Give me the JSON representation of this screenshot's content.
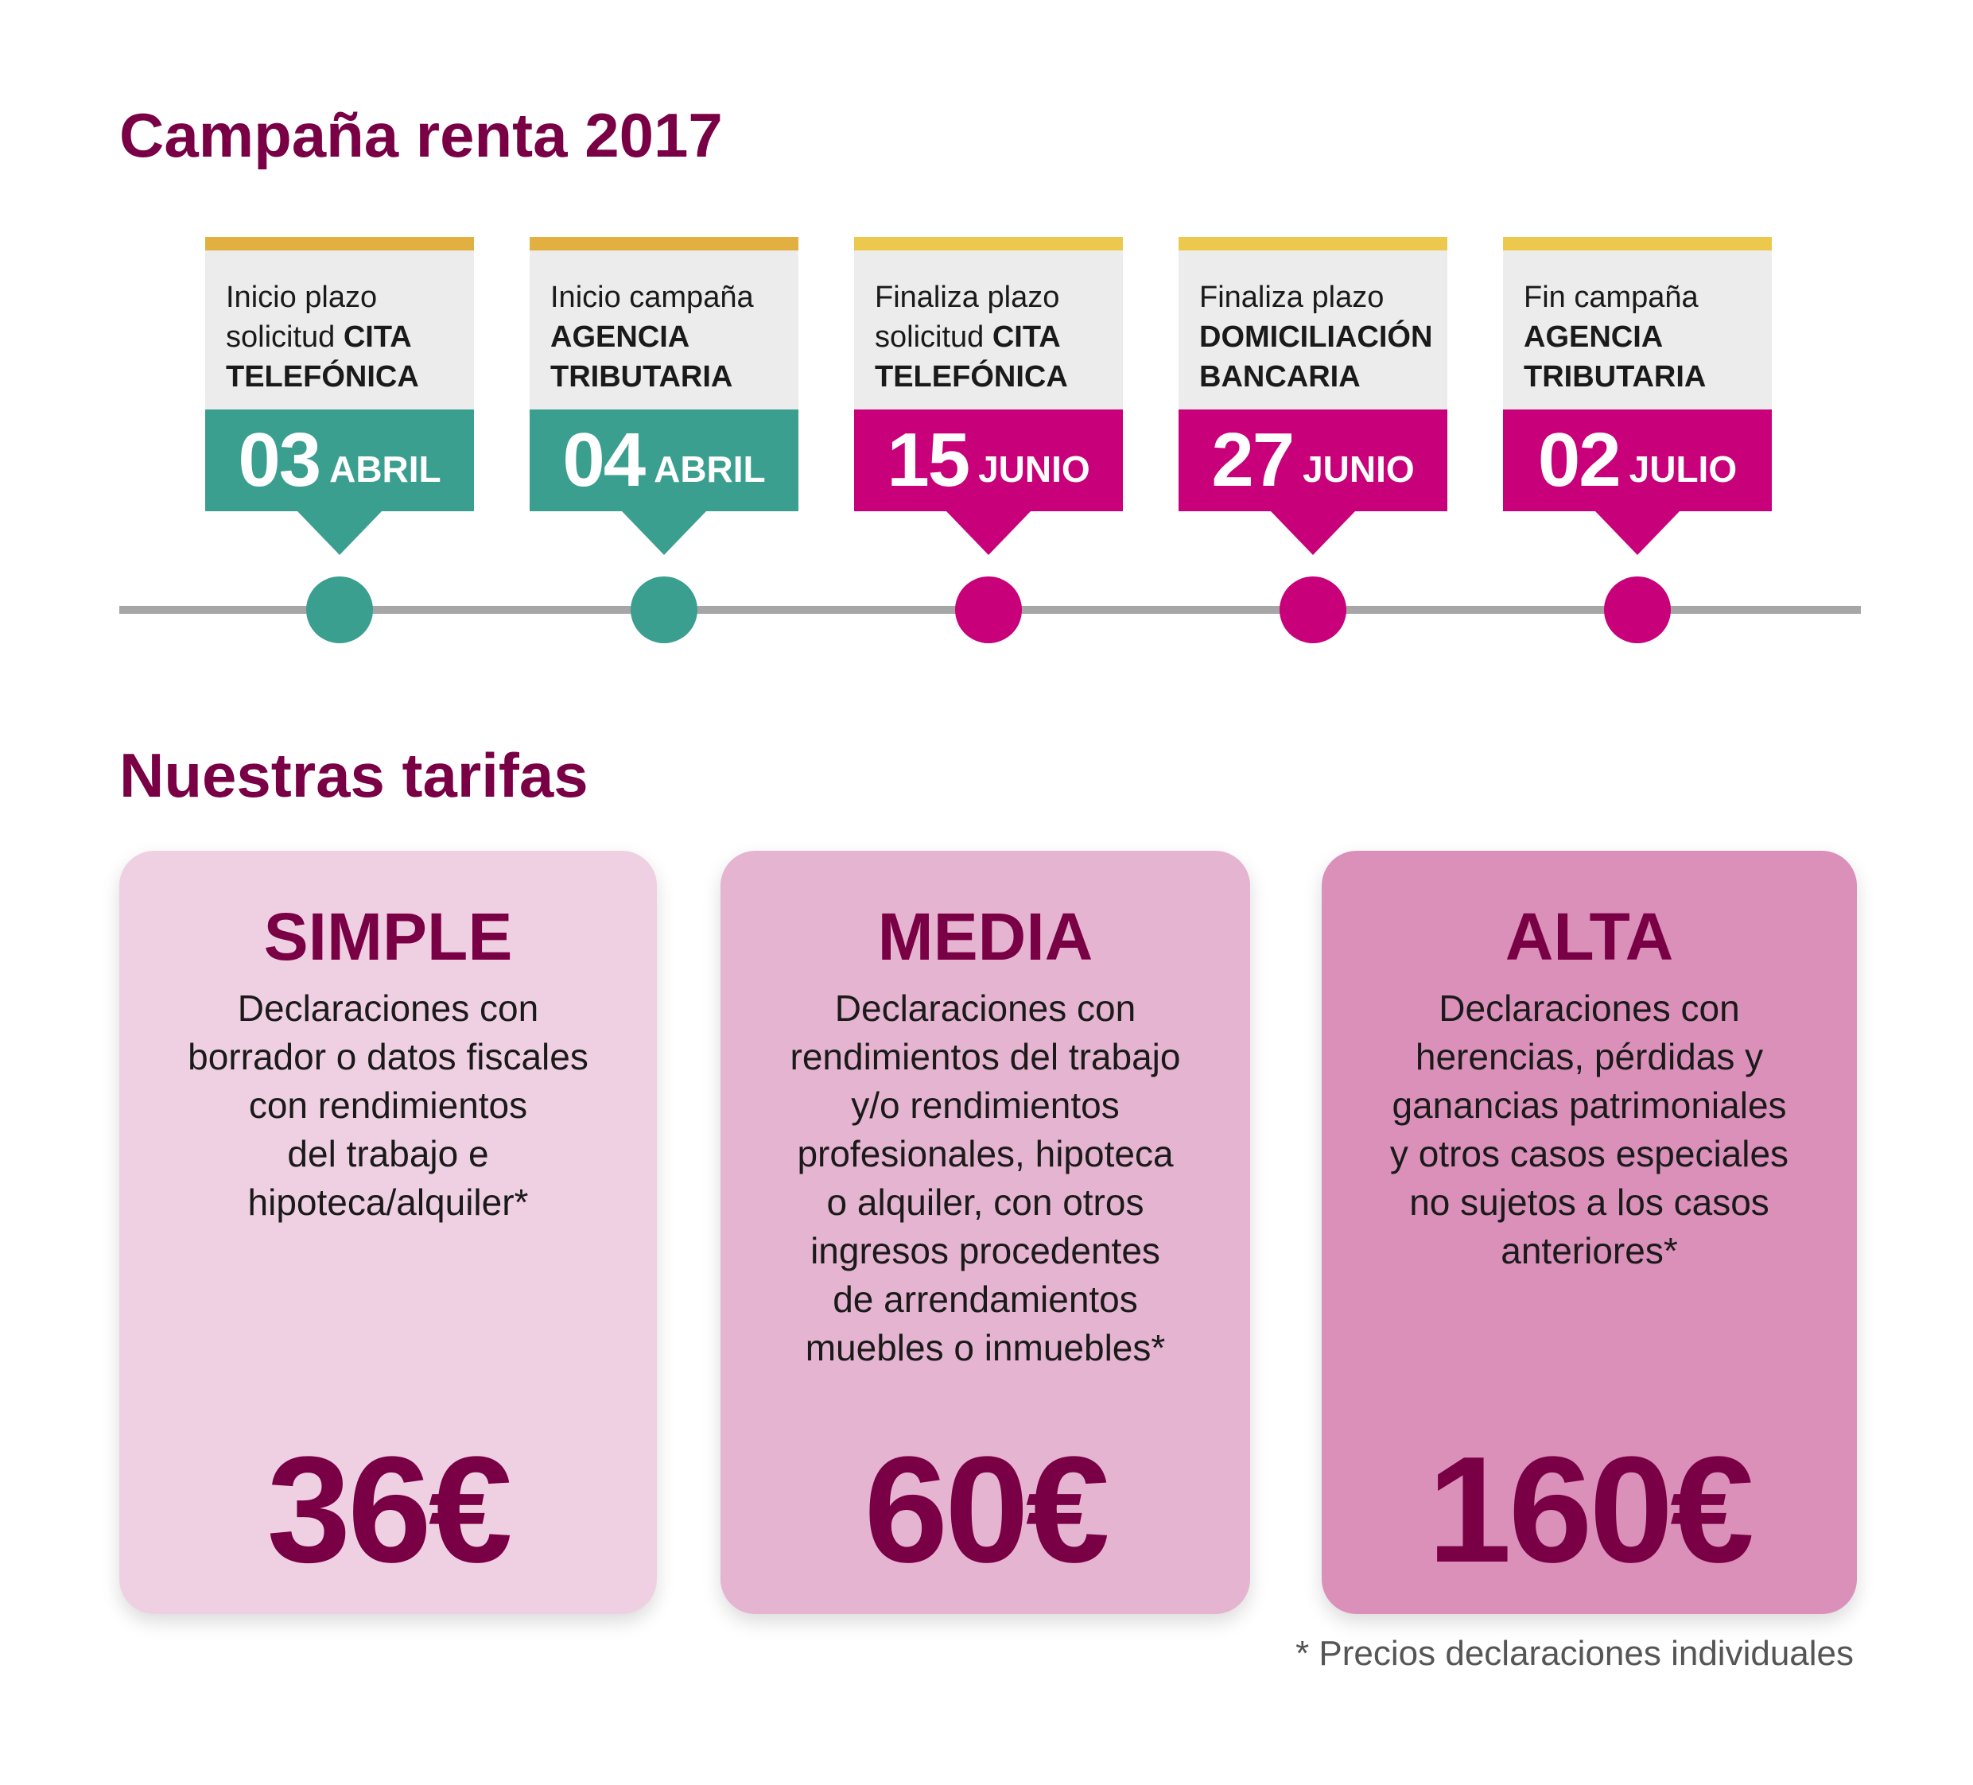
{
  "campaign": {
    "title": "Campaña renta 2017",
    "events": [
      {
        "line1": "Inicio plazo",
        "line2_normal": "solicitud ",
        "line2_bold": "CITA",
        "line3_bold": "TELEFÓNICA",
        "day": "03",
        "month": "ABRIL",
        "color": "#3a9f8e"
      },
      {
        "line1": "Inicio campaña",
        "line2_normal": "",
        "line2_bold": "AGENCIA",
        "line3_bold": "TRIBUTARIA",
        "day": "04",
        "month": "ABRIL",
        "color": "#3a9f8e"
      },
      {
        "line1": "Finaliza plazo",
        "line2_normal": "solicitud ",
        "line2_bold": "CITA",
        "line3_bold": "TELEFÓNICA",
        "day": "15",
        "month": "JUNIO",
        "color": "#c8007a"
      },
      {
        "line1": "Finaliza plazo",
        "line2_normal": "",
        "line2_bold": "DOMICILIACIÓN",
        "line3_bold": "BANCARIA",
        "day": "27",
        "month": "JUNIO",
        "color": "#c8007a"
      },
      {
        "line1": "Fin campaña",
        "line2_normal": "",
        "line2_bold": "AGENCIA",
        "line3_bold": "TRIBUTARIA",
        "day": "02",
        "month": "JULIO",
        "color": "#c8007a"
      }
    ]
  },
  "tariffs": {
    "title": "Nuestras tarifas",
    "plans": [
      {
        "name": "SIMPLE",
        "description": "Declaraciones con\nborrador o datos fiscales\ncon rendimientos\ndel trabajo e\nhipoteca/alquiler*",
        "price": "36€",
        "color": "#efd0e3"
      },
      {
        "name": "MEDIA",
        "description": "Declaraciones con\nrendimientos del trabajo\ny/o rendimientos\nprofesionales, hipoteca\no alquiler, con otros\ningresos procedentes\nde arrendamientos\nmuebles o inmuebles*",
        "price": "60€",
        "color": "#e5b4d0"
      },
      {
        "name": "ALTA",
        "description": "Declaraciones con\nherencias, pérdidas y\nganancias patrimoniales\ny otros casos especiales\nno sujetos a los casos\nanteriores*",
        "price": "160€",
        "color": "#da90b9"
      }
    ],
    "footnote": "* Precios declaraciones individuales"
  },
  "colors": {
    "title": "#7a0046",
    "teal": "#3a9f8e",
    "magenta": "#c8007a",
    "gold": "#e2b040",
    "timeline_line": "#a6a6a6"
  }
}
